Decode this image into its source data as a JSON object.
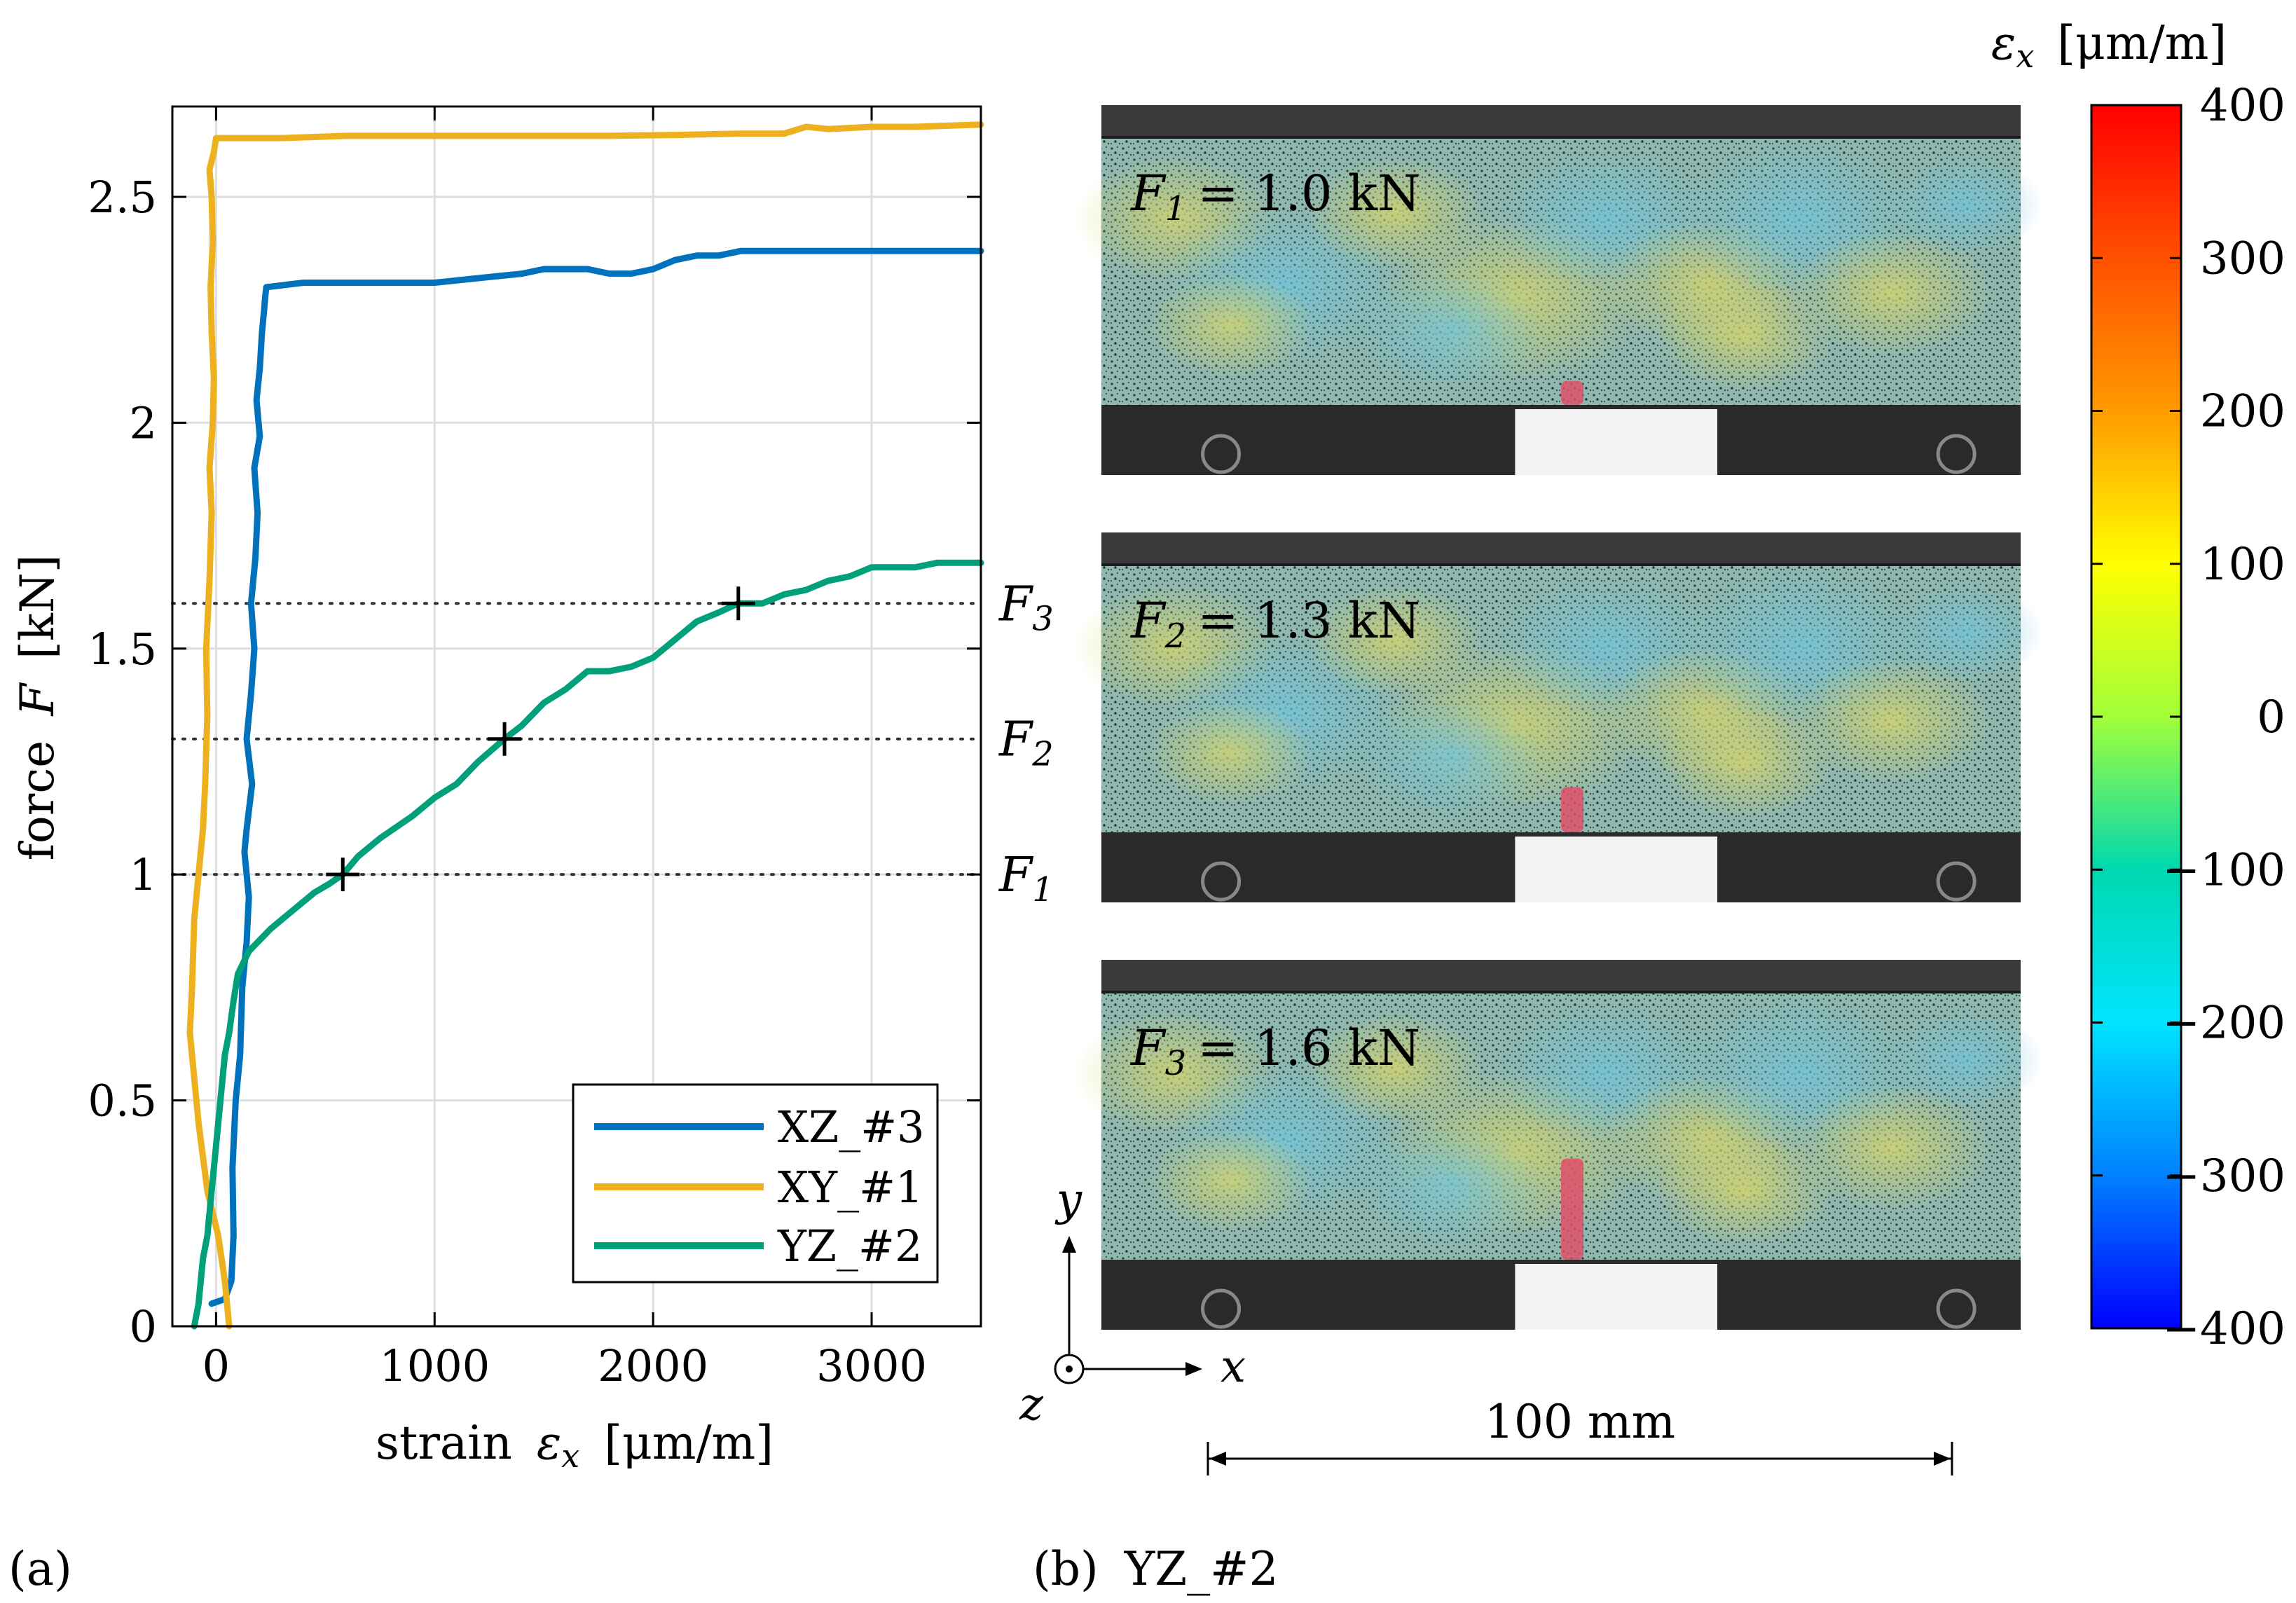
{
  "chart_data": [
    {
      "type": "line",
      "panel_label": "(a)",
      "xlabel": "strain",
      "xlabel_symbol": "ε",
      "xlabel_subscript": "x",
      "xlabel_unit": "[μm/m]",
      "ylabel": "force",
      "ylabel_symbol": "F",
      "ylabel_unit": "[kN]",
      "xlim": [
        -200,
        3500
      ],
      "ylim": [
        0,
        2.7
      ],
      "xticks": [
        0,
        1000,
        2000,
        3000
      ],
      "xtick_labels": [
        "0",
        "1000",
        "2000",
        "3000"
      ],
      "yticks": [
        0,
        0.5,
        1,
        1.5,
        2,
        2.5
      ],
      "ytick_labels": [
        "0",
        "0.5",
        "1",
        "1.5",
        "2",
        "2.5"
      ],
      "grid": true,
      "legend_position": "bottom-right",
      "series": [
        {
          "name": "XZ_#3",
          "color": "#0072BD",
          "x": [
            -20,
            40,
            70,
            80,
            75,
            90,
            110,
            120,
            140,
            150,
            130,
            140,
            165,
            140,
            160,
            175,
            160,
            180,
            190,
            175,
            200,
            185,
            200,
            210,
            220,
            225,
            230,
            400,
            600,
            800,
            1000,
            1200,
            1400,
            1500,
            1600,
            1700,
            1800,
            1900,
            2000,
            2100,
            2200,
            2300,
            2400,
            2600,
            2800,
            3000,
            3200,
            3500
          ],
          "y": [
            0.05,
            0.06,
            0.1,
            0.2,
            0.35,
            0.5,
            0.6,
            0.75,
            0.85,
            0.95,
            1.05,
            1.1,
            1.2,
            1.3,
            1.4,
            1.5,
            1.6,
            1.7,
            1.8,
            1.9,
            1.97,
            2.05,
            2.12,
            2.2,
            2.25,
            2.28,
            2.3,
            2.31,
            2.31,
            2.31,
            2.31,
            2.32,
            2.33,
            2.34,
            2.34,
            2.34,
            2.33,
            2.33,
            2.34,
            2.36,
            2.37,
            2.37,
            2.38,
            2.38,
            2.38,
            2.38,
            2.38,
            2.38
          ]
        },
        {
          "name": "XY_#1",
          "color": "#EDB120",
          "x": [
            60,
            40,
            10,
            -40,
            -80,
            -100,
            -120,
            -110,
            -100,
            -80,
            -60,
            -50,
            -40,
            -45,
            -30,
            -20,
            -30,
            -15,
            -10,
            -20,
            -25,
            -15,
            -20,
            -30,
            -10,
            0,
            300,
            600,
            900,
            1200,
            1500,
            1800,
            2100,
            2400,
            2600,
            2700,
            2800,
            3000,
            3200,
            3500
          ],
          "y": [
            0.0,
            0.1,
            0.2,
            0.3,
            0.45,
            0.55,
            0.65,
            0.75,
            0.9,
            1.0,
            1.1,
            1.2,
            1.35,
            1.5,
            1.65,
            1.8,
            1.9,
            2.0,
            2.1,
            2.2,
            2.3,
            2.4,
            2.5,
            2.56,
            2.6,
            2.63,
            2.63,
            2.635,
            2.635,
            2.635,
            2.635,
            2.635,
            2.637,
            2.64,
            2.64,
            2.655,
            2.65,
            2.655,
            2.655,
            2.66
          ]
        },
        {
          "name": "YZ_#2",
          "color": "#00A07A",
          "x": [
            -100,
            -80,
            -70,
            -60,
            -40,
            -20,
            0,
            20,
            40,
            60,
            80,
            100,
            150,
            250,
            350,
            450,
            520,
            580,
            650,
            750,
            900,
            1000,
            1100,
            1200,
            1320,
            1400,
            1500,
            1600,
            1700,
            1800,
            1900,
            2000,
            2100,
            2200,
            2300,
            2390,
            2500,
            2600,
            2700,
            2800,
            2900,
            3000,
            3100,
            3200,
            3300,
            3400,
            3500
          ],
          "y": [
            0.0,
            0.05,
            0.1,
            0.15,
            0.2,
            0.3,
            0.4,
            0.5,
            0.6,
            0.65,
            0.72,
            0.78,
            0.83,
            0.88,
            0.92,
            0.96,
            0.98,
            1.0,
            1.04,
            1.08,
            1.13,
            1.17,
            1.2,
            1.25,
            1.3,
            1.33,
            1.38,
            1.41,
            1.45,
            1.45,
            1.46,
            1.48,
            1.52,
            1.56,
            1.58,
            1.6,
            1.6,
            1.62,
            1.63,
            1.65,
            1.66,
            1.68,
            1.68,
            1.68,
            1.69,
            1.69,
            1.69
          ]
        }
      ],
      "reference_levels": [
        {
          "label": "F",
          "subscript": "1",
          "value": 1.0
        },
        {
          "label": "F",
          "subscript": "2",
          "value": 1.3
        },
        {
          "label": "F",
          "subscript": "3",
          "value": 1.6
        }
      ],
      "markers": [
        {
          "x": 580,
          "y": 1.0
        },
        {
          "x": 1320,
          "y": 1.3
        },
        {
          "x": 2390,
          "y": 1.6
        }
      ]
    },
    {
      "type": "heatmap",
      "panel_label": "(b)",
      "panel_title": "YZ_#2",
      "colorbar_title_symbol": "ε",
      "colorbar_title_subscript": "x",
      "colorbar_title_unit": "[μm/m]",
      "colorbar_range": [
        -400,
        400
      ],
      "colorbar_ticks": [
        400,
        300,
        200,
        100,
        0,
        -100,
        -200,
        -300,
        -400
      ],
      "colorbar_tick_labels": [
        "400",
        "300",
        "200",
        "100",
        "0",
        "−100",
        "−200",
        "−300",
        "−400"
      ],
      "images": [
        {
          "label": "F",
          "subscript": "1",
          "text": "= 1.0 kN",
          "crack_length": 0.09
        },
        {
          "label": "F",
          "subscript": "2",
          "text": "= 1.3 kN",
          "crack_length": 0.17
        },
        {
          "label": "F",
          "subscript": "3",
          "text": "= 1.6 kN",
          "crack_length": 0.38
        }
      ],
      "axes_labels": {
        "x": "x",
        "y": "y",
        "z": "z"
      },
      "scale_label": "100 mm"
    }
  ]
}
